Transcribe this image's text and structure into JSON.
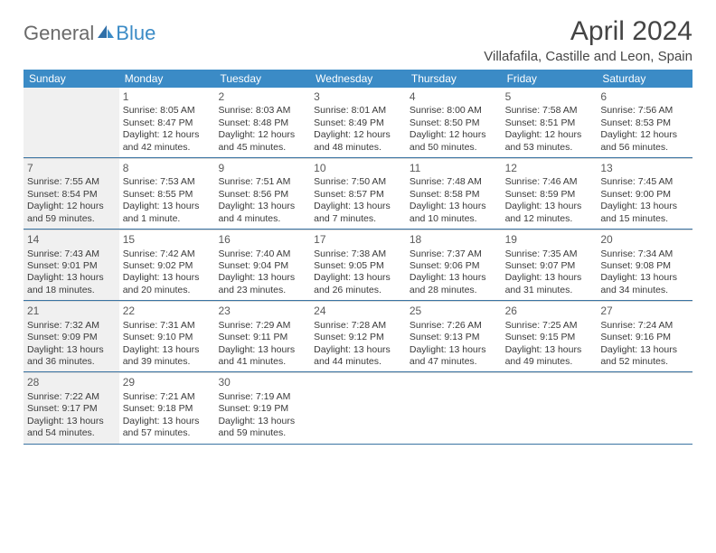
{
  "brand": {
    "part1": "General",
    "part2": "Blue"
  },
  "title": "April 2024",
  "location": "Villafafila, Castille and Leon, Spain",
  "colors": {
    "header_bar": "#3b8bc6",
    "week_border": "#3b74a3",
    "cell_top": "#d9d9d9",
    "weekstart_bg": "#f0f0f0",
    "text": "#3a3a3a",
    "title_text": "#444444"
  },
  "day_names": [
    "Sunday",
    "Monday",
    "Tuesday",
    "Wednesday",
    "Thursday",
    "Friday",
    "Saturday"
  ],
  "weeks": [
    [
      null,
      {
        "n": "1",
        "sr": "Sunrise: 8:05 AM",
        "ss": "Sunset: 8:47 PM",
        "d1": "Daylight: 12 hours",
        "d2": "and 42 minutes."
      },
      {
        "n": "2",
        "sr": "Sunrise: 8:03 AM",
        "ss": "Sunset: 8:48 PM",
        "d1": "Daylight: 12 hours",
        "d2": "and 45 minutes."
      },
      {
        "n": "3",
        "sr": "Sunrise: 8:01 AM",
        "ss": "Sunset: 8:49 PM",
        "d1": "Daylight: 12 hours",
        "d2": "and 48 minutes."
      },
      {
        "n": "4",
        "sr": "Sunrise: 8:00 AM",
        "ss": "Sunset: 8:50 PM",
        "d1": "Daylight: 12 hours",
        "d2": "and 50 minutes."
      },
      {
        "n": "5",
        "sr": "Sunrise: 7:58 AM",
        "ss": "Sunset: 8:51 PM",
        "d1": "Daylight: 12 hours",
        "d2": "and 53 minutes."
      },
      {
        "n": "6",
        "sr": "Sunrise: 7:56 AM",
        "ss": "Sunset: 8:53 PM",
        "d1": "Daylight: 12 hours",
        "d2": "and 56 minutes."
      }
    ],
    [
      {
        "n": "7",
        "sr": "Sunrise: 7:55 AM",
        "ss": "Sunset: 8:54 PM",
        "d1": "Daylight: 12 hours",
        "d2": "and 59 minutes."
      },
      {
        "n": "8",
        "sr": "Sunrise: 7:53 AM",
        "ss": "Sunset: 8:55 PM",
        "d1": "Daylight: 13 hours",
        "d2": "and 1 minute."
      },
      {
        "n": "9",
        "sr": "Sunrise: 7:51 AM",
        "ss": "Sunset: 8:56 PM",
        "d1": "Daylight: 13 hours",
        "d2": "and 4 minutes."
      },
      {
        "n": "10",
        "sr": "Sunrise: 7:50 AM",
        "ss": "Sunset: 8:57 PM",
        "d1": "Daylight: 13 hours",
        "d2": "and 7 minutes."
      },
      {
        "n": "11",
        "sr": "Sunrise: 7:48 AM",
        "ss": "Sunset: 8:58 PM",
        "d1": "Daylight: 13 hours",
        "d2": "and 10 minutes."
      },
      {
        "n": "12",
        "sr": "Sunrise: 7:46 AM",
        "ss": "Sunset: 8:59 PM",
        "d1": "Daylight: 13 hours",
        "d2": "and 12 minutes."
      },
      {
        "n": "13",
        "sr": "Sunrise: 7:45 AM",
        "ss": "Sunset: 9:00 PM",
        "d1": "Daylight: 13 hours",
        "d2": "and 15 minutes."
      }
    ],
    [
      {
        "n": "14",
        "sr": "Sunrise: 7:43 AM",
        "ss": "Sunset: 9:01 PM",
        "d1": "Daylight: 13 hours",
        "d2": "and 18 minutes."
      },
      {
        "n": "15",
        "sr": "Sunrise: 7:42 AM",
        "ss": "Sunset: 9:02 PM",
        "d1": "Daylight: 13 hours",
        "d2": "and 20 minutes."
      },
      {
        "n": "16",
        "sr": "Sunrise: 7:40 AM",
        "ss": "Sunset: 9:04 PM",
        "d1": "Daylight: 13 hours",
        "d2": "and 23 minutes."
      },
      {
        "n": "17",
        "sr": "Sunrise: 7:38 AM",
        "ss": "Sunset: 9:05 PM",
        "d1": "Daylight: 13 hours",
        "d2": "and 26 minutes."
      },
      {
        "n": "18",
        "sr": "Sunrise: 7:37 AM",
        "ss": "Sunset: 9:06 PM",
        "d1": "Daylight: 13 hours",
        "d2": "and 28 minutes."
      },
      {
        "n": "19",
        "sr": "Sunrise: 7:35 AM",
        "ss": "Sunset: 9:07 PM",
        "d1": "Daylight: 13 hours",
        "d2": "and 31 minutes."
      },
      {
        "n": "20",
        "sr": "Sunrise: 7:34 AM",
        "ss": "Sunset: 9:08 PM",
        "d1": "Daylight: 13 hours",
        "d2": "and 34 minutes."
      }
    ],
    [
      {
        "n": "21",
        "sr": "Sunrise: 7:32 AM",
        "ss": "Sunset: 9:09 PM",
        "d1": "Daylight: 13 hours",
        "d2": "and 36 minutes."
      },
      {
        "n": "22",
        "sr": "Sunrise: 7:31 AM",
        "ss": "Sunset: 9:10 PM",
        "d1": "Daylight: 13 hours",
        "d2": "and 39 minutes."
      },
      {
        "n": "23",
        "sr": "Sunrise: 7:29 AM",
        "ss": "Sunset: 9:11 PM",
        "d1": "Daylight: 13 hours",
        "d2": "and 41 minutes."
      },
      {
        "n": "24",
        "sr": "Sunrise: 7:28 AM",
        "ss": "Sunset: 9:12 PM",
        "d1": "Daylight: 13 hours",
        "d2": "and 44 minutes."
      },
      {
        "n": "25",
        "sr": "Sunrise: 7:26 AM",
        "ss": "Sunset: 9:13 PM",
        "d1": "Daylight: 13 hours",
        "d2": "and 47 minutes."
      },
      {
        "n": "26",
        "sr": "Sunrise: 7:25 AM",
        "ss": "Sunset: 9:15 PM",
        "d1": "Daylight: 13 hours",
        "d2": "and 49 minutes."
      },
      {
        "n": "27",
        "sr": "Sunrise: 7:24 AM",
        "ss": "Sunset: 9:16 PM",
        "d1": "Daylight: 13 hours",
        "d2": "and 52 minutes."
      }
    ],
    [
      {
        "n": "28",
        "sr": "Sunrise: 7:22 AM",
        "ss": "Sunset: 9:17 PM",
        "d1": "Daylight: 13 hours",
        "d2": "and 54 minutes."
      },
      {
        "n": "29",
        "sr": "Sunrise: 7:21 AM",
        "ss": "Sunset: 9:18 PM",
        "d1": "Daylight: 13 hours",
        "d2": "and 57 minutes."
      },
      {
        "n": "30",
        "sr": "Sunrise: 7:19 AM",
        "ss": "Sunset: 9:19 PM",
        "d1": "Daylight: 13 hours",
        "d2": "and 59 minutes."
      },
      null,
      null,
      null,
      null
    ]
  ]
}
